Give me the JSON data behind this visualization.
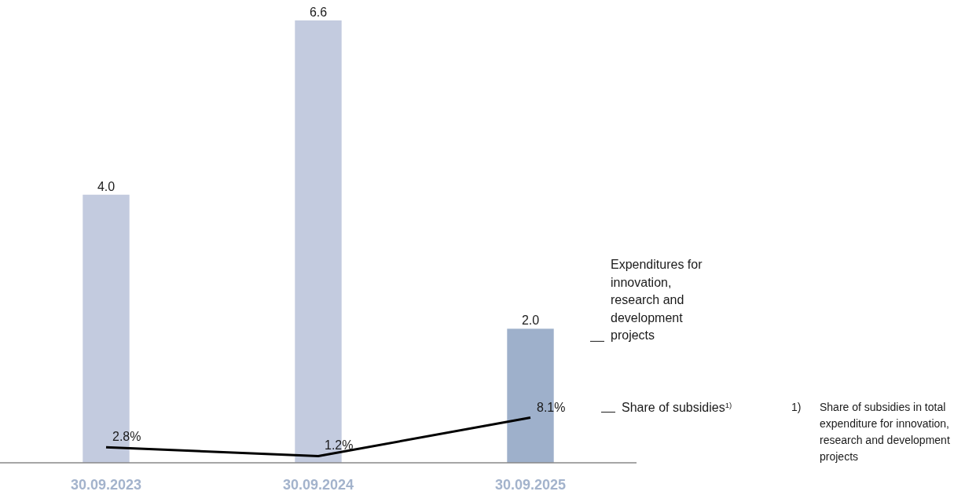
{
  "chart_data": {
    "type": "bar",
    "categories": [
      "30.09.2023",
      "30.09.2024",
      "30.09.2025"
    ],
    "series": [
      {
        "name": "Expenditures for innovation, research and development projects",
        "colors": [
          "#c3cbdf",
          "#c3cbdf",
          "#9eb0cb"
        ],
        "values": [
          4.0,
          6.6,
          2.0
        ],
        "value_labels": [
          "4.0",
          "6.6",
          "2.0"
        ]
      },
      {
        "name": "Share of subsidies$^{1)}$",
        "type": "line",
        "axis": "y2",
        "color": "#000000",
        "values": [
          2.8,
          1.2,
          8.1
        ],
        "value_labels": [
          "2.8%",
          "1.2%",
          "8.1%"
        ]
      }
    ],
    "tick_labels": "x",
    "annotations": [
      "1) Share of subsidies in total expenditure for innovation, research and development projects"
    ]
  }
}
